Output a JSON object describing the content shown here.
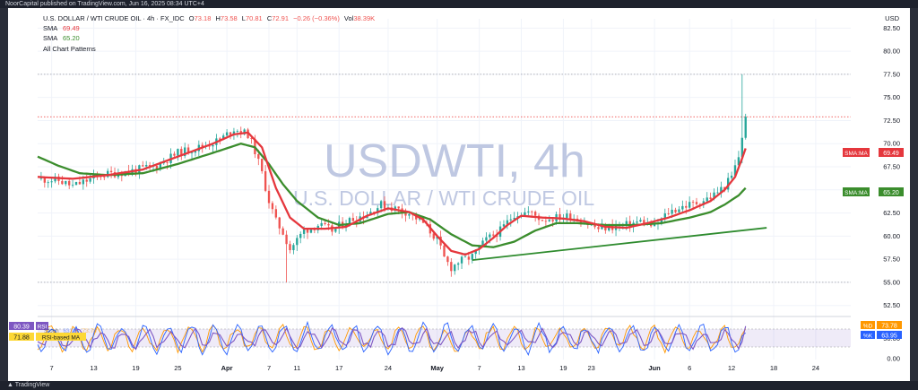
{
  "page": {
    "header_text": "NoorCapital published on TradingView.com, Jun 16, 2025 08:34 UTC+4",
    "footer_text": "TradingView"
  },
  "legend": {
    "symbol": "U.S. DOLLAR / WTI CRUDE OIL · 4h · FX_IDC",
    "o_label": "O",
    "o_value": "73.18",
    "h_label": "H",
    "h_value": "73.58",
    "l_label": "L",
    "l_value": "70.81",
    "c_label": "C",
    "c_value": "72.91",
    "change": "−0.26 (−0.36%)",
    "vol_label": "Vol",
    "vol_value": "38.39K",
    "sma_fast_label": "SMA",
    "sma_fast_value": "69.49",
    "sma_slow_label": "SMA",
    "sma_slow_value": "65.20",
    "patterns": "All Chart Patterns"
  },
  "watermark": {
    "title": "USDWTI, 4h",
    "subtitle": "U.S. DOLLAR / WTI CRUDE OIL"
  },
  "currency": "USD",
  "colors": {
    "up": "#26a69a",
    "down": "#ef5350",
    "sma_fast": "#e5373d",
    "sma_slow": "#3b8d2d",
    "trendline": "#2e8b2e",
    "rsi": "#7e57c2",
    "stoch_k": "#2962ff",
    "stoch_d": "#ff9800",
    "watermark": "#a9b6d8"
  },
  "badges": {
    "sma_fast": {
      "label": "SMA:MA",
      "value": "69.49"
    },
    "sma_slow": {
      "label": "SMA:MA",
      "value": "65.20"
    }
  },
  "oscillator": {
    "rsi_label": "RSI",
    "rsi_value": "80.39",
    "rsi_ma_label": "RSI-based MA",
    "rsi_ma_value": "71.88",
    "stoch_label": "Stoch",
    "stoch_k_value": "63.95",
    "stoch_d_value": "73.78",
    "k_tag": "%K",
    "d_tag": "%D"
  },
  "chart_data": {
    "type": "candlestick",
    "title": "U.S. DOLLAR / WTI CRUDE OIL · 4h · FX_IDC",
    "price_axis": {
      "ticks": [
        "82.50",
        "80.00",
        "77.50",
        "75.00",
        "72.50",
        "70.00",
        "67.50",
        "65.00",
        "62.50",
        "60.00",
        "57.50",
        "55.00",
        "52.50"
      ],
      "range": [
        51.5,
        83.5
      ]
    },
    "osc_axis": {
      "ticks": [
        "50.00",
        "0.00"
      ],
      "range": [
        -2,
        100
      ]
    },
    "x_ticks": [
      "7",
      "13",
      "19",
      "25",
      "Apr",
      "7",
      "11",
      "17",
      "24",
      "May",
      "7",
      "13",
      "19",
      "23",
      "Jun",
      "6",
      "12",
      "18",
      "24"
    ],
    "x_tick_days": [
      7,
      13,
      19,
      25,
      32,
      38,
      42,
      48,
      55,
      62,
      68,
      74,
      80,
      84,
      93,
      98,
      104,
      110,
      116
    ],
    "x_day_range": [
      5,
      121
    ],
    "date_origin": "Mar 1",
    "last_day": 106,
    "price_anchors": [
      [
        5,
        66.2
      ],
      [
        8,
        66.0
      ],
      [
        10,
        65.4
      ],
      [
        14,
        66.6
      ],
      [
        18,
        67.0
      ],
      [
        22,
        67.6
      ],
      [
        25,
        69.0
      ],
      [
        28,
        69.6
      ],
      [
        31,
        70.4
      ],
      [
        33,
        71.6
      ],
      [
        35,
        71.0
      ],
      [
        36,
        69.2
      ],
      [
        37,
        66.8
      ],
      [
        38,
        63.8
      ],
      [
        39,
        61.6
      ],
      [
        40,
        60.4
      ],
      [
        41,
        58.6
      ],
      [
        42,
        59.6
      ],
      [
        43,
        60.6
      ],
      [
        45,
        61.2
      ],
      [
        47,
        60.6
      ],
      [
        49,
        61.6
      ],
      [
        52,
        62.4
      ],
      [
        54,
        63.4
      ],
      [
        56,
        63.0
      ],
      [
        58,
        62.5
      ],
      [
        60,
        61.4
      ],
      [
        62,
        59.6
      ],
      [
        63,
        57.6
      ],
      [
        64,
        56.6
      ],
      [
        65,
        57.2
      ],
      [
        67,
        57.8
      ],
      [
        69,
        59.6
      ],
      [
        71,
        60.6
      ],
      [
        73,
        62.4
      ],
      [
        75,
        62.6
      ],
      [
        77,
        61.8
      ],
      [
        79,
        62.0
      ],
      [
        81,
        62.2
      ],
      [
        83,
        61.5
      ],
      [
        85,
        60.8
      ],
      [
        87,
        61.0
      ],
      [
        89,
        61.2
      ],
      [
        91,
        61.6
      ],
      [
        93,
        61.0
      ],
      [
        95,
        62.6
      ],
      [
        97,
        63.2
      ],
      [
        99,
        63.6
      ],
      [
        101,
        64.2
      ],
      [
        103,
        65.4
      ],
      [
        104,
        66.4
      ],
      [
        105,
        68.6
      ],
      [
        105.5,
        70.8
      ],
      [
        106,
        72.9
      ]
    ],
    "sma_fast": [
      [
        5,
        66.4
      ],
      [
        10,
        66.2
      ],
      [
        15,
        66.6
      ],
      [
        20,
        67.2
      ],
      [
        25,
        68.6
      ],
      [
        30,
        70.0
      ],
      [
        33,
        71.0
      ],
      [
        35,
        71.2
      ],
      [
        37,
        69.6
      ],
      [
        39,
        65.2
      ],
      [
        41,
        62.0
      ],
      [
        43,
        60.8
      ],
      [
        46,
        60.8
      ],
      [
        49,
        61.0
      ],
      [
        52,
        62.2
      ],
      [
        55,
        63.0
      ],
      [
        58,
        62.6
      ],
      [
        60,
        61.8
      ],
      [
        62,
        60.0
      ],
      [
        64,
        58.4
      ],
      [
        66,
        58.0
      ],
      [
        68,
        58.6
      ],
      [
        70,
        59.8
      ],
      [
        72,
        61.2
      ],
      [
        74,
        62.2
      ],
      [
        77,
        62.0
      ],
      [
        80,
        61.9
      ],
      [
        83,
        61.6
      ],
      [
        86,
        61.0
      ],
      [
        89,
        60.9
      ],
      [
        92,
        61.4
      ],
      [
        95,
        62.0
      ],
      [
        98,
        62.8
      ],
      [
        101,
        63.8
      ],
      [
        103,
        65.0
      ],
      [
        104.5,
        66.4
      ],
      [
        105.5,
        68.4
      ],
      [
        106,
        69.49
      ]
    ],
    "sma_slow": [
      [
        5,
        68.6
      ],
      [
        8,
        67.6
      ],
      [
        11,
        66.8
      ],
      [
        15,
        66.6
      ],
      [
        20,
        66.8
      ],
      [
        25,
        67.8
      ],
      [
        30,
        69.0
      ],
      [
        34,
        70.0
      ],
      [
        36,
        69.6
      ],
      [
        38,
        67.8
      ],
      [
        40,
        65.6
      ],
      [
        42,
        63.8
      ],
      [
        45,
        62.0
      ],
      [
        48,
        61.2
      ],
      [
        51,
        61.4
      ],
      [
        55,
        62.4
      ],
      [
        58,
        62.6
      ],
      [
        61,
        61.8
      ],
      [
        64,
        60.2
      ],
      [
        67,
        59.0
      ],
      [
        70,
        58.8
      ],
      [
        73,
        59.4
      ],
      [
        76,
        60.6
      ],
      [
        79,
        61.4
      ],
      [
        82,
        61.4
      ],
      [
        86,
        61.2
      ],
      [
        90,
        61.2
      ],
      [
        94,
        61.4
      ],
      [
        98,
        62.0
      ],
      [
        101,
        62.6
      ],
      [
        103,
        63.4
      ],
      [
        105,
        64.4
      ],
      [
        106,
        65.2
      ]
    ],
    "trendline": [
      [
        67,
        57.4
      ],
      [
        109,
        60.9
      ]
    ],
    "resistance_levels": [
      77.5,
      72.9
    ],
    "support_levels": [
      55.0
    ],
    "last_close": 72.91,
    "rsi_last": 80.39,
    "rsi_ma_last": 71.88,
    "stoch_k_last": 63.95,
    "stoch_d_last": 73.78
  }
}
